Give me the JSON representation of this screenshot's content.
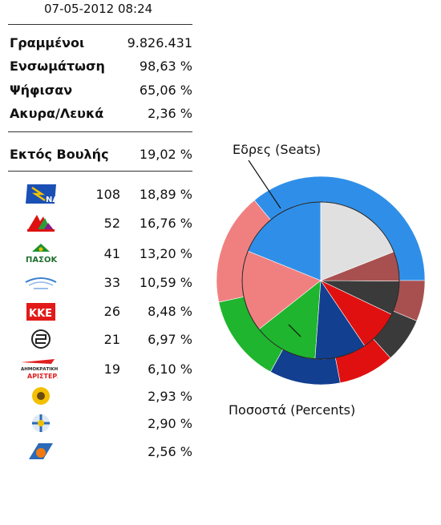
{
  "header": {
    "timestamp": "07-05-2012 08:24"
  },
  "stats": [
    {
      "label": "Γραμμένοι",
      "value": "9.826.431"
    },
    {
      "label": "Ενσωμάτωση",
      "value": "98,63 %"
    },
    {
      "label": "Ψήφισαν",
      "value": "65,06 %"
    },
    {
      "label": "Ακυρα/Λευκά",
      "value": "2,36 %"
    }
  ],
  "outside": {
    "label": "Εκτός Βουλής",
    "value": "19,02 %"
  },
  "parties": [
    {
      "logo": "nd-logo",
      "logo_text": "ΝΔ",
      "seats": "108",
      "pct": "18,89 %"
    },
    {
      "logo": "syriza-logo",
      "logo_text": "",
      "seats": "52",
      "pct": "16,76 %"
    },
    {
      "logo": "pasok-logo",
      "logo_text": "ΠΑΣΟΚ",
      "seats": "41",
      "pct": "13,20 %"
    },
    {
      "logo": "anel-logo",
      "logo_text": "",
      "seats": "33",
      "pct": "10,59 %"
    },
    {
      "logo": "kke-logo",
      "logo_text": "ΚΚΕ",
      "seats": "26",
      "pct": "8,48 %"
    },
    {
      "logo": "xa-logo",
      "logo_text": "",
      "seats": "21",
      "pct": "6,97 %"
    },
    {
      "logo": "dimar-logo",
      "logo_text": "ΔΗΜΟΚΡΑΤΙΚΗ ΑΡΙΣΤΕΡΑ",
      "seats": "19",
      "pct": "6,10 %"
    },
    {
      "logo": "greens-logo",
      "logo_text": "",
      "seats": "",
      "pct": "2,93 %"
    },
    {
      "logo": "laos-logo",
      "logo_text": "",
      "seats": "",
      "pct": "2,90 %"
    },
    {
      "logo": "da-logo",
      "logo_text": "",
      "seats": "",
      "pct": "2,56 %"
    }
  ],
  "chart_data": {
    "type": "pie",
    "labels": {
      "outer": "Εδρες (Seats)",
      "inner": "Ποσοστά (Percents)"
    },
    "start_angle": 90,
    "outer_ring": [
      {
        "party": "ND",
        "value": 108,
        "color": "#2f8fe8"
      },
      {
        "party": "SYRIZA",
        "value": 52,
        "color": "#f08080"
      },
      {
        "party": "PASOK",
        "value": 41,
        "color": "#1fb52e"
      },
      {
        "party": "ANEL",
        "value": 33,
        "color": "#123f8f"
      },
      {
        "party": "KKE",
        "value": 26,
        "color": "#e01010"
      },
      {
        "party": "XA",
        "value": 21,
        "color": "#3a3a3a"
      },
      {
        "party": "DIMAR",
        "value": 19,
        "color": "#a85050"
      }
    ],
    "inner_ring": [
      {
        "party": "ND",
        "value": 18.89,
        "color": "#2f8fe8"
      },
      {
        "party": "SYRIZA",
        "value": 16.76,
        "color": "#f08080"
      },
      {
        "party": "PASOK",
        "value": 13.2,
        "color": "#1fb52e"
      },
      {
        "party": "ANEL",
        "value": 10.59,
        "color": "#123f8f"
      },
      {
        "party": "KKE",
        "value": 8.48,
        "color": "#e01010"
      },
      {
        "party": "XA",
        "value": 6.97,
        "color": "#3a3a3a"
      },
      {
        "party": "DIMAR",
        "value": 6.1,
        "color": "#a85050"
      },
      {
        "party": "Other",
        "value": 19.02,
        "color": "#e0e0e0"
      }
    ]
  }
}
